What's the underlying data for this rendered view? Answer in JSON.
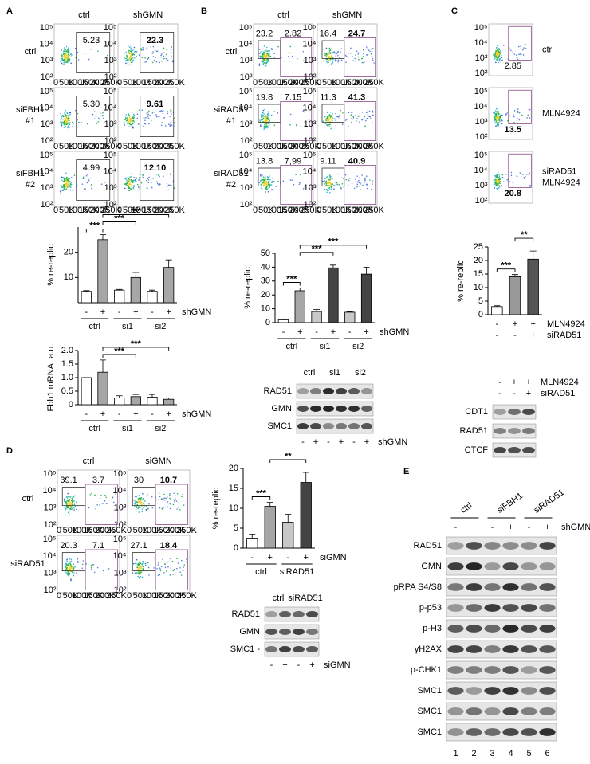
{
  "flow_axes": {
    "xticks": [
      "0",
      "50K",
      "100K",
      "150K",
      "200K",
      "250K"
    ],
    "yticks": [
      "10²",
      "10³",
      "10⁴",
      "10⁵"
    ]
  },
  "panels": [
    {
      "label": "A",
      "flow": {
        "columns": [
          "ctrl",
          "shGMN"
        ],
        "rows": [
          {
            "name": [
              "ctrl"
            ],
            "plots": [
              [
                {
                  "text": "5.23"
                }
              ],
              [
                {
                  "text": "22.3",
                  "color": "#e0241b",
                  "bold": true
                }
              ]
            ]
          },
          {
            "name": [
              "siFBH1",
              "#1"
            ],
            "plots": [
              [
                {
                  "text": "5.30"
                }
              ],
              [
                {
                  "text": "9.61",
                  "bold": true
                }
              ]
            ]
          },
          {
            "name": [
              "siFBH1",
              "#2"
            ],
            "plots": [
              [
                {
                  "text": "4.99"
                }
              ],
              [
                {
                  "text": "12.10",
                  "bold": true
                }
              ]
            ]
          }
        ]
      }
    },
    {
      "label": "B",
      "flow": {
        "columns": [
          "ctrl",
          "shGMN"
        ],
        "rows": [
          {
            "name": [
              "ctrl"
            ],
            "plots": [
              [
                {
                  "text": "23.2"
                },
                {
                  "text": "2.82"
                }
              ],
              [
                {
                  "text": "16.4"
                },
                {
                  "text": "24.7",
                  "color": "#e0241b",
                  "bold": true
                }
              ]
            ]
          },
          {
            "name": [
              "siRAD51",
              "#1"
            ],
            "plots": [
              [
                {
                  "text": "19.8"
                },
                {
                  "text": "7.15"
                }
              ],
              [
                {
                  "text": "11.3"
                },
                {
                  "text": "41.3",
                  "color": "#e0241b",
                  "bold": true
                }
              ]
            ]
          },
          {
            "name": [
              "siRAD51",
              "#2"
            ],
            "plots": [
              [
                {
                  "text": "13.8"
                },
                {
                  "text": "7,99"
                }
              ],
              [
                {
                  "text": "9.11"
                },
                {
                  "text": "40.9",
                  "color": "#e0241b",
                  "bold": true
                }
              ]
            ]
          }
        ]
      },
      "blot": {
        "groups": [
          "ctrl",
          "si1",
          "si2"
        ],
        "rows": [
          {
            "name": "RAD51"
          },
          {
            "name": "GMN"
          },
          {
            "name": "SMC1"
          }
        ],
        "signs": [
          "-",
          "+",
          "-",
          "+",
          "-",
          "+"
        ],
        "treatment": "shGMN"
      }
    },
    {
      "label": "C",
      "flow": {
        "rows": [
          {
            "name": [
              "ctrl"
            ],
            "plots": [
              [
                {
                  "text": "2.85"
                }
              ]
            ]
          },
          {
            "name": [
              "MLN4924"
            ],
            "plots": [
              [
                {
                  "text": "13.5",
                  "bold": true
                }
              ]
            ]
          },
          {
            "name": [
              "siRAD51",
              "MLN4924"
            ],
            "plots": [
              [
                {
                  "text": "20.8",
                  "color": "#e0241b",
                  "bold": true
                }
              ]
            ]
          }
        ]
      },
      "blot": {
        "conditions": [
          {
            "name": "MLN4924",
            "signs": [
              "-",
              "+",
              "+"
            ]
          },
          {
            "name": "siRAD51",
            "signs": [
              "-",
              "-",
              "+"
            ]
          }
        ],
        "rows": [
          {
            "name": "CDT1"
          },
          {
            "name": "RAD51"
          },
          {
            "name": "CTCF"
          }
        ]
      }
    },
    {
      "label": "D",
      "flow": {
        "columns": [
          "ctrl",
          "siGMN"
        ],
        "rows": [
          {
            "name": [
              "ctrl"
            ],
            "plots": [
              [
                {
                  "text": "39.1"
                },
                {
                  "text": "3.7"
                }
              ],
              [
                {
                  "text": "30"
                },
                {
                  "text": "10.7",
                  "color": "#e0241b",
                  "bold": true
                }
              ]
            ]
          },
          {
            "name": [
              "siRAD51"
            ],
            "plots": [
              [
                {
                  "text": "20.3"
                },
                {
                  "text": "7.1"
                }
              ],
              [
                {
                  "text": "27.1"
                },
                {
                  "text": "18.4",
                  "color": "#e0241b",
                  "bold": true
                }
              ]
            ]
          }
        ]
      },
      "blot": {
        "groups": [
          "ctrl",
          "siRAD51"
        ],
        "rows": [
          {
            "name": "RAD51"
          },
          {
            "name": "GMN"
          },
          {
            "name": "SMC1 -"
          }
        ],
        "signs": [
          "-",
          "+",
          "-",
          "+"
        ],
        "treatment": "siGMN"
      }
    },
    {
      "label": "E",
      "blot": {
        "groups": [
          "ctrl",
          "siFBH1",
          "siRAD51"
        ],
        "signs": [
          "-",
          "+",
          "-",
          "+",
          "-",
          "+"
        ],
        "treatment": "shGMN",
        "rows": [
          {
            "name": "RAD51",
            "color": "#000000"
          },
          {
            "name": "GMN",
            "color": "#000000"
          },
          {
            "name": "pRPA S4/S8",
            "color": "#2e6da4"
          },
          {
            "name": "p-p53",
            "color": "#2e6da4"
          },
          {
            "name": "p-H3",
            "color": "#2e6da4"
          },
          {
            "name": "γH2AX",
            "color": "#1aa34a"
          },
          {
            "name": "p-CHK1",
            "color": "#1aa34a"
          },
          {
            "name": "SMC1",
            "color": "#000000"
          },
          {
            "name": "SMC1",
            "color": "#2e6da4"
          },
          {
            "name": "SMC1",
            "color": "#1aa34a"
          }
        ],
        "lanes": [
          "1",
          "2",
          "3",
          "4",
          "5",
          "6"
        ]
      }
    }
  ],
  "chart_data": [
    {
      "type": "bar",
      "ylabel": "% re-replic",
      "ylim": [
        0,
        30
      ],
      "yticks": [
        10,
        20
      ],
      "values": [
        4.5,
        25,
        5,
        10,
        4.5,
        14
      ],
      "errors": [
        0.3,
        2,
        0.3,
        2,
        0.5,
        3
      ],
      "colors": [
        "#ffffff",
        "#a6a6a6",
        "#ffffff",
        "#a6a6a6",
        "#ffffff",
        "#a6a6a6"
      ],
      "conditions": [
        {
          "name": "shGMN",
          "signs": [
            "-",
            "+",
            "-",
            "+",
            "-",
            "+"
          ]
        }
      ],
      "groups": [
        "ctrl",
        "si1",
        "si2"
      ],
      "significance": [
        {
          "label": "***",
          "bars": [
            0,
            1
          ]
        },
        {
          "label": "***",
          "bars": [
            1,
            3
          ]
        },
        {
          "label": "***",
          "bars": [
            1,
            5
          ]
        }
      ]
    },
    {
      "type": "bar",
      "ylabel": "Fbh1 mRNA, a.u.",
      "ylim": [
        0,
        2
      ],
      "yticks": [
        0,
        0.5,
        {
          "value": 1,
          "label": "1.0"
        },
        1.5,
        {
          "value": 2,
          "label": "2.0"
        }
      ],
      "values": [
        1.0,
        1.2,
        0.25,
        0.3,
        0.28,
        0.2
      ],
      "errors": [
        0,
        0.45,
        0.08,
        0.08,
        0.1,
        0.05
      ],
      "colors": [
        "#ffffff",
        "#a6a6a6",
        "#ffffff",
        "#a6a6a6",
        "#ffffff",
        "#a6a6a6"
      ],
      "conditions": [
        {
          "name": "shGMN",
          "signs": [
            "-",
            "+",
            "-",
            "+",
            "-",
            "+"
          ]
        }
      ],
      "groups": [
        "ctrl",
        "si1",
        "si2"
      ],
      "significance": [
        {
          "label": "***",
          "bars": [
            1,
            3
          ]
        },
        {
          "label": "***",
          "bars": [
            1,
            5
          ]
        }
      ]
    },
    {
      "type": "bar",
      "ylabel": "% re-replic",
      "ylim": [
        0,
        50
      ],
      "yticks": [
        0,
        10,
        20,
        30,
        40,
        50
      ],
      "values": [
        2,
        23,
        8,
        39.5,
        7.5,
        35
      ],
      "errors": [
        0.5,
        2,
        1.5,
        2,
        0.5,
        5
      ],
      "colors": [
        "#ffffff",
        "#a6a6a6",
        "#c8c8c8",
        "#444444",
        "#c8c8c8",
        "#444444"
      ],
      "conditions": [
        {
          "name": "shGMN",
          "signs": [
            "-",
            "+",
            "-",
            "+",
            "-",
            "+"
          ]
        }
      ],
      "groups": [
        "ctrl",
        "si1",
        "si2"
      ],
      "significance": [
        {
          "label": "***",
          "bars": [
            0,
            1
          ]
        },
        {
          "label": "***",
          "bars": [
            1,
            3
          ]
        },
        {
          "label": "***",
          "bars": [
            1,
            5
          ]
        }
      ]
    },
    {
      "type": "bar",
      "ylabel": "% re-replic",
      "ylim": [
        0,
        25
      ],
      "yticks": [
        0,
        5,
        10,
        15,
        20,
        25
      ],
      "values": [
        3,
        14,
        20.5
      ],
      "errors": [
        0.3,
        0.8,
        3
      ],
      "colors": [
        "#ffffff",
        "#999999",
        "#555555"
      ],
      "conditions": [
        {
          "name": "MLN4924",
          "signs": [
            "-",
            "+",
            "+"
          ]
        },
        {
          "name": "siRAD51",
          "signs": [
            "-",
            "-",
            "+"
          ]
        }
      ],
      "significance": [
        {
          "label": "***",
          "bars": [
            0,
            1
          ]
        },
        {
          "label": "**",
          "bars": [
            1,
            2
          ]
        }
      ]
    },
    {
      "type": "bar",
      "ylabel": "% re-replic",
      "ylim": [
        0,
        20
      ],
      "yticks": [
        0,
        5,
        10,
        15,
        20
      ],
      "values": [
        2.5,
        10.5,
        6.5,
        16.5
      ],
      "errors": [
        1,
        1,
        2,
        2.5
      ],
      "colors": [
        "#ffffff",
        "#a6a6a6",
        "#c8c8c8",
        "#444444"
      ],
      "conditions": [
        {
          "name": "siGMN",
          "signs": [
            "-",
            "+",
            "-",
            "+"
          ]
        }
      ],
      "groups": [
        "ctrl",
        "siRAD51"
      ],
      "significance": [
        {
          "label": "***",
          "bars": [
            0,
            1
          ]
        },
        {
          "label": "**",
          "bars": [
            1,
            3
          ]
        }
      ]
    }
  ]
}
